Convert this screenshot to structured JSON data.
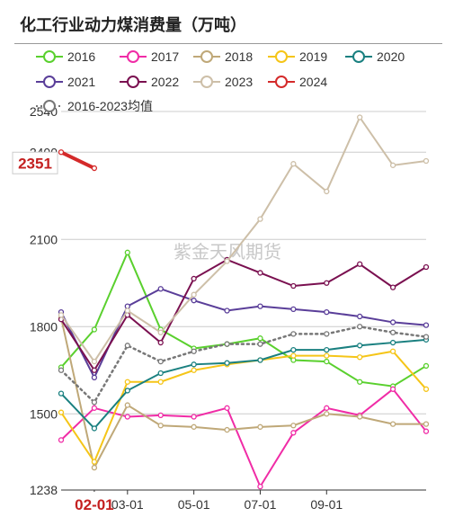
{
  "title": "化工行业动力煤消费量（万吨）",
  "watermark": "紫金天风期货",
  "colors": {
    "2016": "#5ad02e",
    "2017": "#f02ca6",
    "2018": "#bfa878",
    "2019": "#f5c518",
    "2020": "#1a8080",
    "2021": "#5a3e99",
    "2022": "#7a1050",
    "2023": "#cdbfa8",
    "2024": "#d42a2a",
    "avg": "#777777"
  },
  "chart_data": {
    "type": "line",
    "title": "化工行业动力煤消费量（万吨）",
    "xlabel": "",
    "ylabel": "",
    "ylim": [
      1238,
      2540
    ],
    "yticks": [
      "1238",
      "1500",
      "1800",
      "2100",
      "2400",
      "2540"
    ],
    "xticks": [
      "02-01",
      "03-01",
      "05-01",
      "07-01",
      "09-01"
    ],
    "grid": "horizontal",
    "legend": "top",
    "x": [
      "01",
      "02",
      "03",
      "04",
      "05",
      "06",
      "07",
      "08",
      "09",
      "10",
      "11",
      "12"
    ],
    "series": [
      {
        "name": "2016",
        "key": "2016",
        "values": [
          1660,
          1790,
          2055,
          1790,
          1725,
          1740,
          1760,
          1685,
          1680,
          1610,
          1595,
          1665
        ]
      },
      {
        "name": "2017",
        "key": "2017",
        "values": [
          1410,
          1520,
          1490,
          1495,
          1490,
          1520,
          1250,
          1435,
          1520,
          1495,
          1585,
          1440
        ]
      },
      {
        "name": "2018",
        "key": "2018",
        "values": [
          1830,
          1315,
          1530,
          1460,
          1455,
          1445,
          1455,
          1460,
          1500,
          1490,
          1465,
          1465
        ]
      },
      {
        "name": "2019",
        "key": "2019",
        "values": [
          1505,
          1335,
          1610,
          1610,
          1650,
          1670,
          1685,
          1700,
          1700,
          1695,
          1715,
          1585
        ]
      },
      {
        "name": "2020",
        "key": "2020",
        "values": [
          1570,
          1450,
          1580,
          1640,
          1670,
          1675,
          1685,
          1720,
          1720,
          1735,
          1745,
          1755
        ]
      },
      {
        "name": "2021",
        "key": "2021",
        "values": [
          1850,
          1625,
          1870,
          1930,
          1890,
          1855,
          1870,
          1860,
          1850,
          1835,
          1815,
          1805
        ]
      },
      {
        "name": "2022",
        "key": "2022",
        "values": [
          1825,
          1650,
          1840,
          1745,
          1965,
          2030,
          1985,
          1940,
          1950,
          2015,
          1935,
          2005
        ]
      },
      {
        "name": "2023",
        "key": "2023",
        "values": [
          1840,
          1680,
          1855,
          1780,
          1910,
          2025,
          2170,
          2360,
          2265,
          2520,
          2355,
          2370
        ]
      },
      {
        "name": "2024",
        "key": "2024",
        "values": [
          2400,
          2345,
          null,
          null,
          null,
          null,
          null,
          null,
          null,
          null,
          null,
          null
        ]
      },
      {
        "name": "2016-2023均值",
        "key": "avg",
        "values": [
          1650,
          1540,
          1735,
          1680,
          1715,
          1740,
          1740,
          1775,
          1775,
          1800,
          1780,
          1765
        ]
      }
    ],
    "last_value_label": "2351",
    "highlight_xtick": "02-01"
  }
}
